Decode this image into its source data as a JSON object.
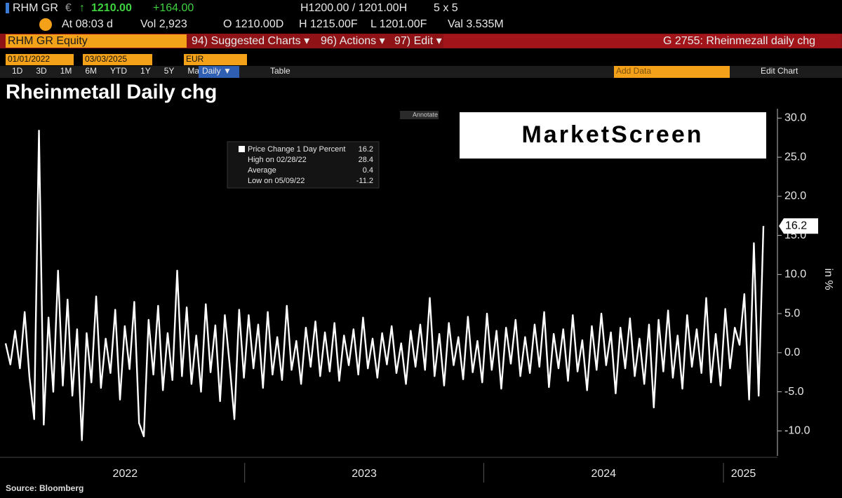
{
  "header": {
    "ticker": "RHM GR",
    "currency": "€",
    "arrow": "↑",
    "price": "1210.00",
    "change": "+164.00",
    "bid_ask": "H1200.00 / 1201.00H",
    "size": "5 x 5",
    "time": "At 08:03 d",
    "volume": "Vol 2,923",
    "open": "O 1210.00D",
    "high": "H 1215.00F",
    "low": "L 1201.00F",
    "value": "Val 3.535M"
  },
  "menu": {
    "security": "RHM GR Equity",
    "items": [
      "94) Suggested Charts ▾",
      "96) Actions ▾",
      "97) Edit ▾"
    ],
    "chart_name": "G 2755: Rheinmezall daily chg"
  },
  "toolbar": {
    "date_from": "01/01/2022",
    "date_to": "03/03/2025",
    "currency": "EUR",
    "periods": [
      "1D",
      "3D",
      "1M",
      "6M",
      "YTD",
      "1Y",
      "5Y",
      "Max"
    ],
    "frequency": "Daily ▼",
    "table": "Table",
    "add_data": "Add Data",
    "edit_chart": "Edit Chart"
  },
  "chart_data": {
    "type": "line",
    "title": "Rheinmetall Daily chg",
    "annotate": "Annotate",
    "watermark": "MarketScreen",
    "source": "Source: Bloomberg",
    "y_label": "in %",
    "x_labels": [
      "2022",
      "2023",
      "2024",
      "2025"
    ],
    "ylim": [
      -13.2,
      31.2
    ],
    "yticks": [
      {
        "value": 30,
        "label": "30.0"
      },
      {
        "value": 25,
        "label": "25.0"
      },
      {
        "value": 20,
        "label": "20.0"
      },
      {
        "value": 15,
        "label": "15.0"
      },
      {
        "value": 10,
        "label": "10.0"
      },
      {
        "value": 5,
        "label": "5.0"
      },
      {
        "value": 0,
        "label": "0.0"
      },
      {
        "value": -5,
        "label": "-5.0"
      },
      {
        "value": -10,
        "label": "-10.0"
      }
    ],
    "grid": false,
    "legend": [
      {
        "label": "Price Change 1 Day Percent",
        "value": 16.2
      },
      {
        "label": "High on 02/28/22",
        "value": 28.4
      },
      {
        "label": "Average",
        "value": 0.4
      },
      {
        "label": "Low on 05/09/22",
        "value": -11.2
      }
    ],
    "series": [
      {
        "name": "Price Change 1 Day Percent",
        "color": "#ffffff",
        "values": [
          1.2,
          -1.5,
          2.8,
          -2.0,
          5.2,
          -3.1,
          -8.5,
          28.4,
          -9.2,
          4.5,
          -5.0,
          10.5,
          -4.2,
          6.8,
          -5.5,
          3.0,
          -11.2,
          2.5,
          -3.8,
          7.2,
          -4.5,
          1.8,
          -2.6,
          5.5,
          -6.0,
          3.4,
          -2.1,
          6.5,
          -9.0,
          -10.7,
          4.2,
          -2.8,
          6.0,
          -4.8,
          2.5,
          -3.5,
          10.5,
          -3.0,
          5.8,
          -4.0,
          2.2,
          -5.0,
          6.2,
          -2.5,
          3.5,
          -6.2,
          4.8,
          -1.5,
          -8.5,
          5.5,
          -3.2,
          4.8,
          -2.0,
          3.6,
          -4.5,
          5.2,
          -2.8,
          2.0,
          -3.5,
          6.0,
          -2.2,
          1.5,
          -4.0,
          3.2,
          -1.8,
          4.0,
          -3.0,
          2.6,
          -2.4,
          3.8,
          -3.6,
          2.2,
          -1.6,
          3.0,
          -2.8,
          4.5,
          -2.0,
          1.8,
          -3.2,
          2.5,
          -1.5,
          3.4,
          -2.6,
          1.2,
          -4.0,
          2.8,
          -1.8,
          3.6,
          -2.2,
          7.0,
          -3.0,
          2.4,
          -4.2,
          3.8,
          -1.6,
          2.0,
          -3.4,
          4.6,
          -2.5,
          1.5,
          -3.8,
          5.0,
          -2.2,
          2.8,
          -4.6,
          3.2,
          -1.4,
          4.2,
          -3.0,
          2.0,
          -2.6,
          3.6,
          -1.8,
          5.2,
          -4.4,
          2.4,
          -2.0,
          3.0,
          -3.6,
          4.8,
          -2.4,
          1.6,
          -4.8,
          3.4,
          -2.2,
          5.0,
          -1.6,
          2.6,
          -5.2,
          3.2,
          -2.0,
          4.4,
          -3.0,
          1.8,
          -4.0,
          3.6,
          -7.0,
          4.2,
          -2.4,
          5.4,
          -3.2,
          2.2,
          -4.6,
          4.8,
          -1.8,
          3.0,
          -2.6,
          7.0,
          -3.8,
          2.4,
          -4.2,
          5.6,
          -2.0,
          3.2,
          1.0,
          7.5,
          -6.0,
          14.0,
          -5.5,
          16.2
        ]
      }
    ]
  }
}
